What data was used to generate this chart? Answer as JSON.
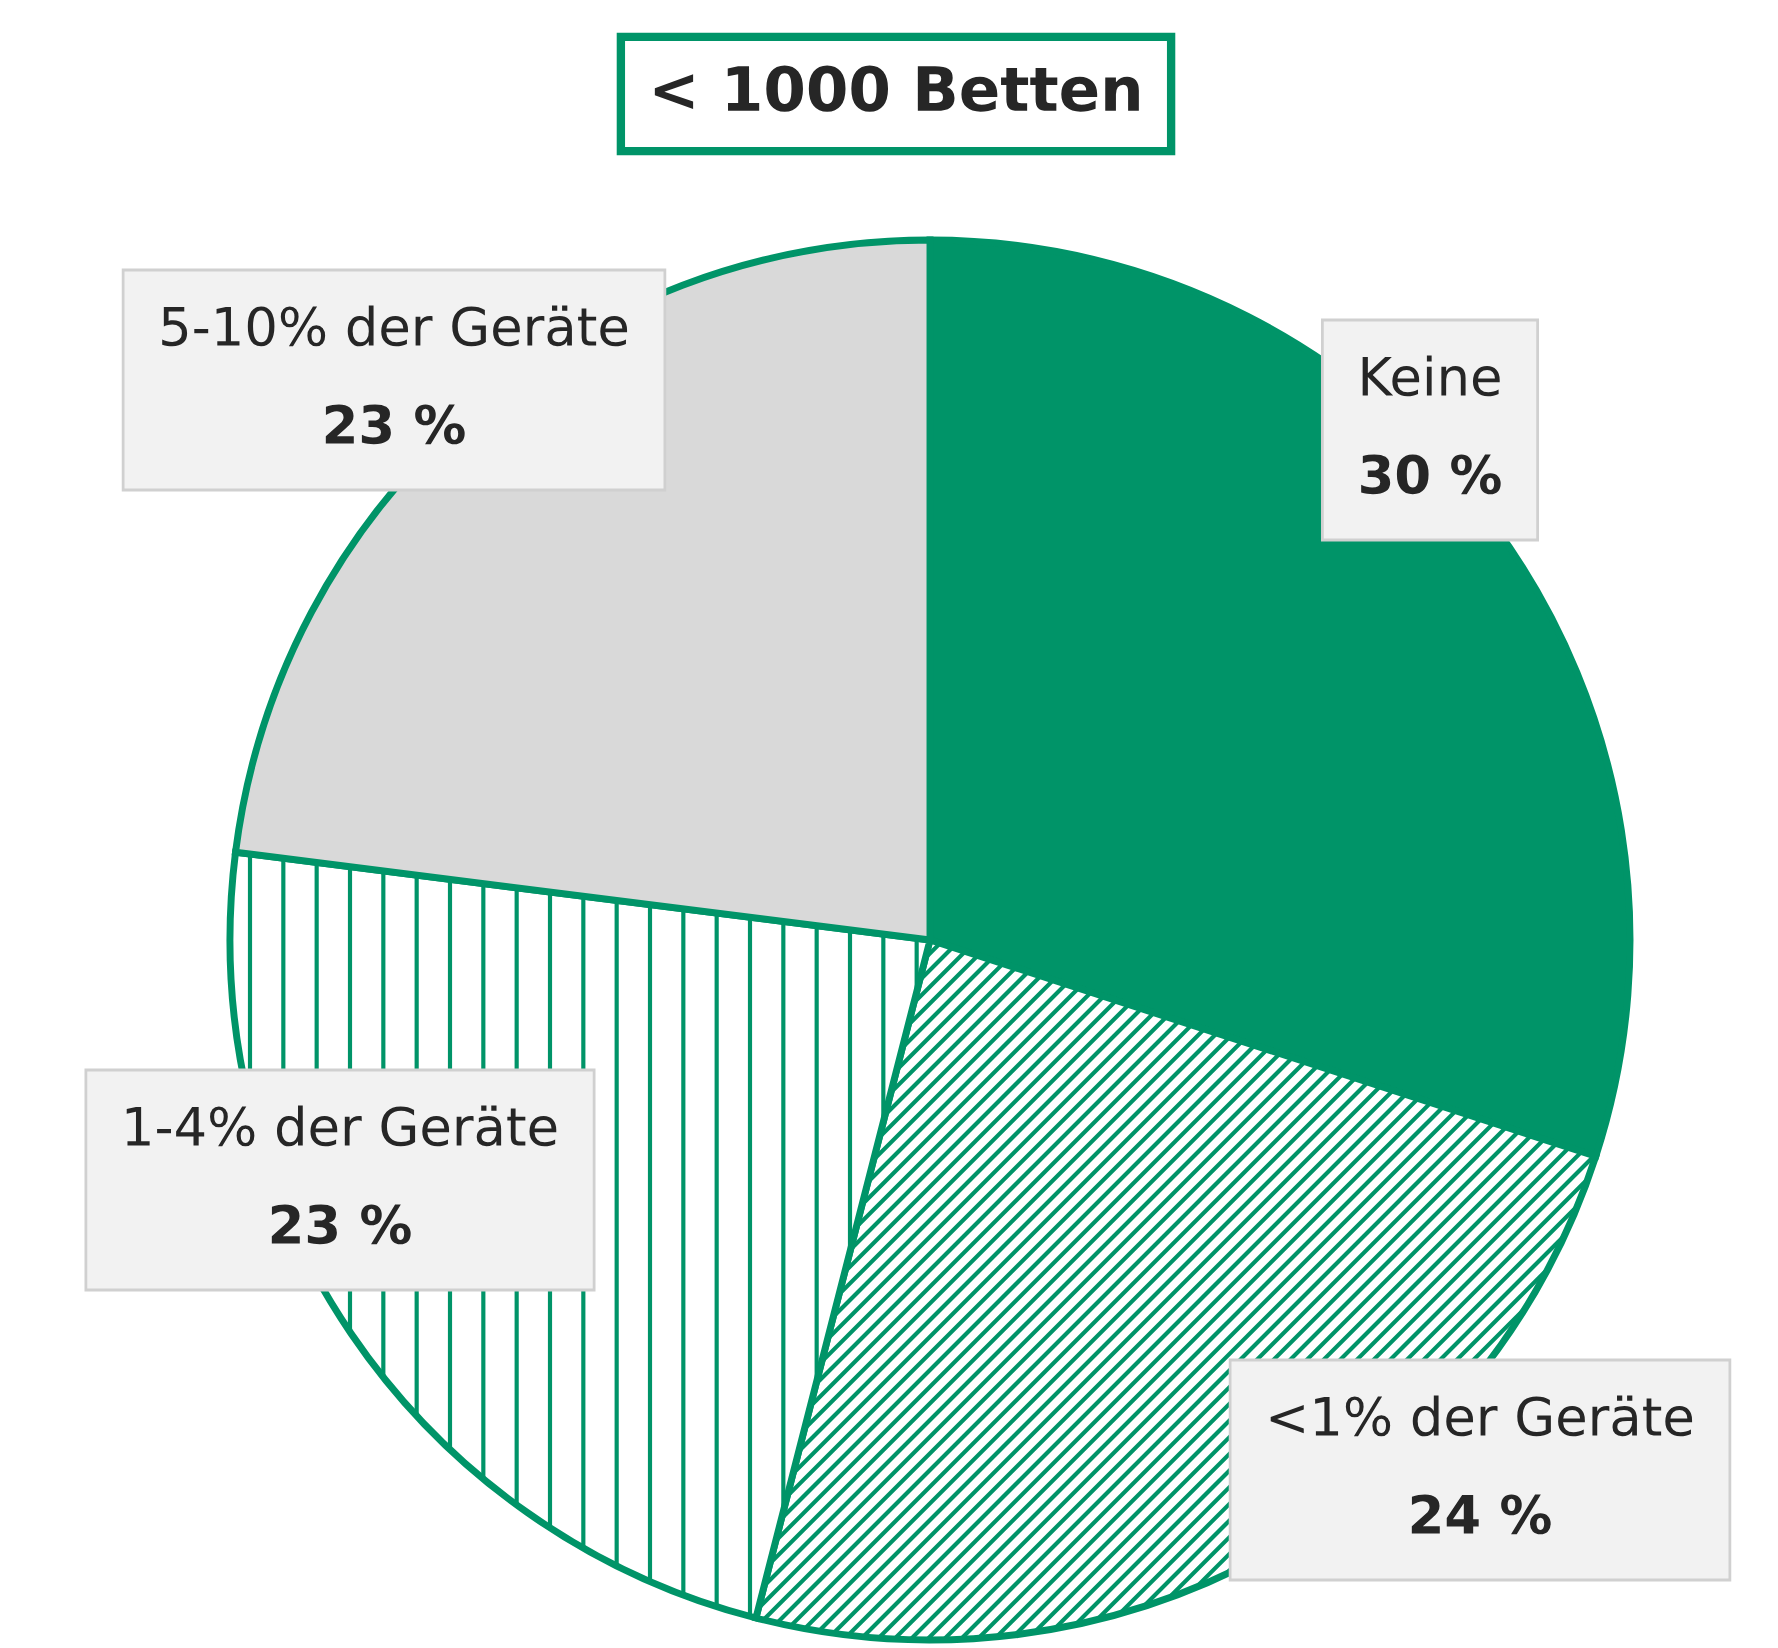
{
  "chart_data": {
    "type": "pie",
    "title": "< 1000 Betten",
    "categories": [
      "Keine",
      "<1% der Geräte",
      "1-4% der Geräte",
      "5-10% der Geräte"
    ],
    "values": [
      30,
      24,
      23,
      23
    ],
    "value_labels": [
      "30 %",
      "24 %",
      "23 %",
      "23 %"
    ],
    "colors": [
      "#009468",
      "#009468",
      "#009468",
      "#d9d9d9"
    ],
    "legend": false
  }
}
